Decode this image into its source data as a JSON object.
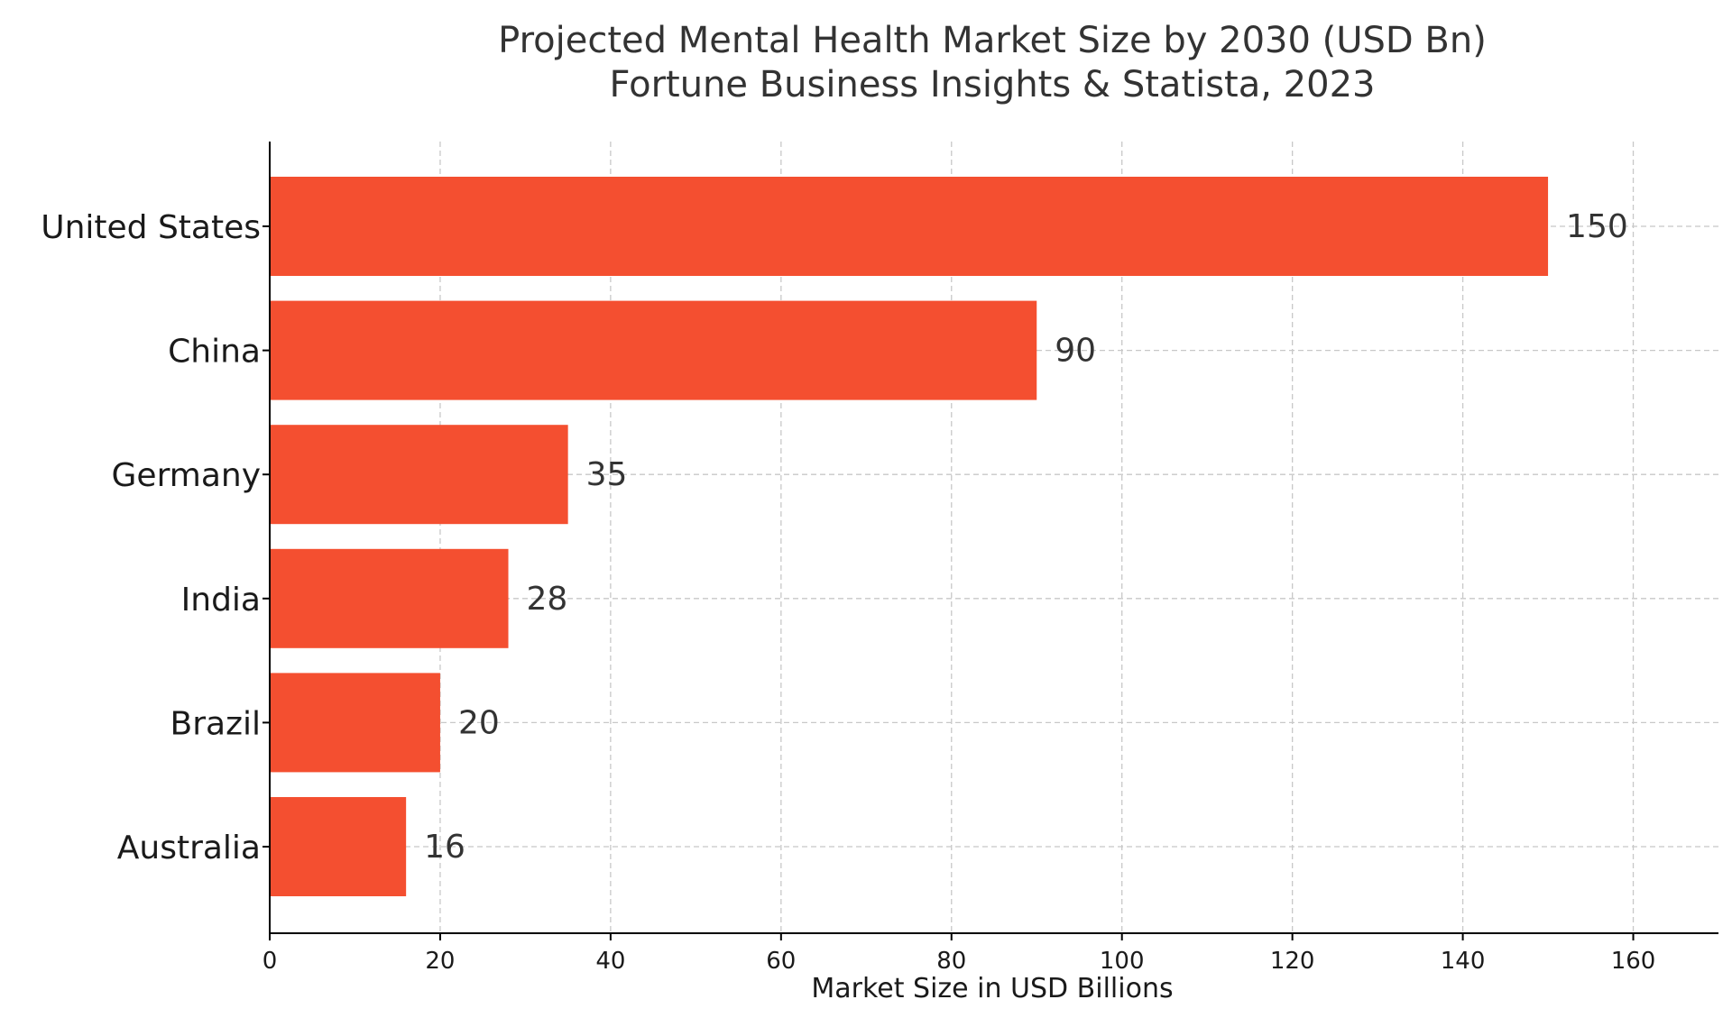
{
  "chart_data": {
    "type": "bar",
    "orientation": "horizontal",
    "title": "Projected Mental Health Market Size by 2030 (USD Bn)",
    "subtitle": "Fortune Business Insights & Statista, 2023",
    "xlabel": "Market Size in USD Billions",
    "ylabel": "",
    "xlim": [
      0,
      170
    ],
    "xticks": [
      0,
      20,
      40,
      60,
      80,
      100,
      120,
      140,
      160
    ],
    "categories": [
      "United States",
      "China",
      "Germany",
      "India",
      "Brazil",
      "Australia"
    ],
    "values": [
      150,
      90,
      35,
      28,
      20,
      16
    ],
    "data_labels": [
      "150",
      "90",
      "35",
      "28",
      "20",
      "16"
    ],
    "bar_color": "#f44f30",
    "grid": true
  }
}
